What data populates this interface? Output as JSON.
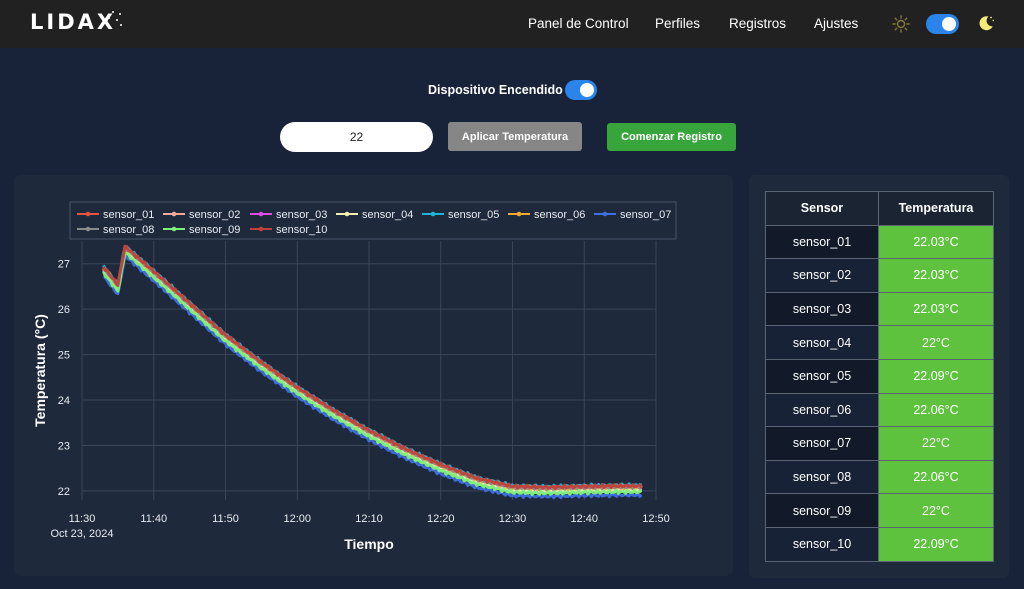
{
  "brand": {
    "logo_text": "LIDAX"
  },
  "nav": {
    "items": [
      {
        "id": "panel",
        "label": "Panel de Control"
      },
      {
        "id": "perfiles",
        "label": "Perfiles"
      },
      {
        "id": "registros",
        "label": "Registros"
      },
      {
        "id": "ajustes",
        "label": "Ajustes"
      }
    ],
    "theme_toggle_on": true
  },
  "device": {
    "label": "Dispositivo Encendido",
    "on": true
  },
  "controls": {
    "temperature_value": "22",
    "apply_label": "Aplicar Temperatura",
    "start_label": "Comenzar Registro"
  },
  "colors": {
    "accent": "#2a84ea",
    "apply_button": "#868686",
    "start_button": "#38a53c",
    "value_cell": "#5fc23f",
    "background": "#182238",
    "card": "#1e293c"
  },
  "chart_data": {
    "type": "line",
    "xlabel": "Tiempo",
    "ylabel": "Temperatura (°C)",
    "x_ticks": [
      "11:30",
      "11:40",
      "11:50",
      "12:00",
      "12:10",
      "12:20",
      "12:30",
      "12:40",
      "12:50"
    ],
    "x_date_label": "Oct 23, 2024",
    "xlim": [
      "11:30",
      "12:50"
    ],
    "y_ticks": [
      22,
      23,
      24,
      25,
      26,
      27
    ],
    "ylim": [
      21.8,
      27.5
    ],
    "grid": true,
    "legend_position": "top",
    "series": [
      {
        "name": "sensor_01",
        "color": "#e3513f",
        "offset": 0.04
      },
      {
        "name": "sensor_02",
        "color": "#f7a89a",
        "offset": 0.02
      },
      {
        "name": "sensor_03",
        "color": "#e24ae6",
        "offset": 0.0
      },
      {
        "name": "sensor_04",
        "color": "#f2efb0",
        "offset": -0.02
      },
      {
        "name": "sensor_05",
        "color": "#1eb4d6",
        "offset": 0.09
      },
      {
        "name": "sensor_06",
        "color": "#f0a830",
        "offset": 0.06
      },
      {
        "name": "sensor_07",
        "color": "#3f6fe0",
        "offset": -0.12
      },
      {
        "name": "sensor_08",
        "color": "#8c8c8c",
        "offset": 0.06
      },
      {
        "name": "sensor_09",
        "color": "#7df07a",
        "offset": -0.05
      },
      {
        "name": "sensor_10",
        "color": "#c2403a",
        "offset": 0.08
      }
    ],
    "base_curve": [
      {
        "x": "11:33",
        "y": 26.85
      },
      {
        "x": "11:35",
        "y": 26.45
      },
      {
        "x": "11:36",
        "y": 27.3
      },
      {
        "x": "11:40",
        "y": 26.75
      },
      {
        "x": "11:45",
        "y": 26.05
      },
      {
        "x": "11:50",
        "y": 25.35
      },
      {
        "x": "11:55",
        "y": 24.75
      },
      {
        "x": "12:00",
        "y": 24.2
      },
      {
        "x": "12:05",
        "y": 23.7
      },
      {
        "x": "12:10",
        "y": 23.25
      },
      {
        "x": "12:15",
        "y": 22.85
      },
      {
        "x": "12:20",
        "y": 22.5
      },
      {
        "x": "12:25",
        "y": 22.2
      },
      {
        "x": "12:30",
        "y": 22.02
      },
      {
        "x": "12:35",
        "y": 22.0
      },
      {
        "x": "12:40",
        "y": 22.02
      },
      {
        "x": "12:45",
        "y": 22.03
      },
      {
        "x": "12:48",
        "y": 22.03
      }
    ]
  },
  "table": {
    "headers": {
      "sensor": "Sensor",
      "temperature": "Temperatura"
    },
    "rows": [
      {
        "sensor": "sensor_01",
        "value": "22.03°C"
      },
      {
        "sensor": "sensor_02",
        "value": "22.03°C"
      },
      {
        "sensor": "sensor_03",
        "value": "22.03°C"
      },
      {
        "sensor": "sensor_04",
        "value": "22°C"
      },
      {
        "sensor": "sensor_05",
        "value": "22.09°C"
      },
      {
        "sensor": "sensor_06",
        "value": "22.06°C"
      },
      {
        "sensor": "sensor_07",
        "value": "22°C"
      },
      {
        "sensor": "sensor_08",
        "value": "22.06°C"
      },
      {
        "sensor": "sensor_09",
        "value": "22°C"
      },
      {
        "sensor": "sensor_10",
        "value": "22.09°C"
      }
    ]
  }
}
